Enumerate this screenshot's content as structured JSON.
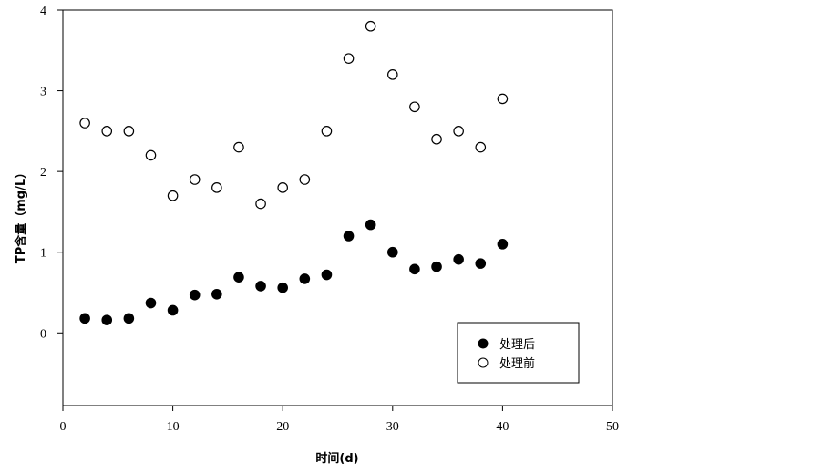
{
  "chart_data": {
    "type": "scatter",
    "xlabel": "时间(d)",
    "ylabel": "TP含量（mg/L）",
    "xlim": [
      0,
      50
    ],
    "ylim": [
      -0.9,
      4
    ],
    "xticks": [
      0,
      10,
      20,
      30,
      40,
      50
    ],
    "yticks": [
      0,
      1,
      2,
      3,
      4
    ],
    "grid": false,
    "legend_position": "bottom-right",
    "series": [
      {
        "name": "处理后",
        "marker": "filled-circle",
        "color": "#000000",
        "x": [
          2,
          4,
          6,
          8,
          10,
          12,
          14,
          16,
          18,
          20,
          22,
          24,
          26,
          28,
          30,
          32,
          34,
          36,
          38,
          40
        ],
        "y": [
          0.18,
          0.16,
          0.18,
          0.37,
          0.28,
          0.47,
          0.48,
          0.69,
          0.58,
          0.56,
          0.67,
          0.72,
          1.2,
          1.34,
          1.0,
          0.79,
          0.82,
          0.91,
          0.86,
          1.1
        ]
      },
      {
        "name": "处理前",
        "marker": "open-circle",
        "color": "#000000",
        "x": [
          2,
          4,
          6,
          8,
          10,
          12,
          14,
          16,
          18,
          20,
          22,
          24,
          26,
          28,
          30,
          32,
          34,
          36,
          38,
          40
        ],
        "y": [
          2.6,
          2.5,
          2.5,
          2.2,
          1.7,
          1.9,
          1.8,
          2.3,
          1.6,
          1.8,
          1.9,
          2.5,
          3.4,
          3.8,
          3.2,
          2.8,
          2.4,
          2.5,
          2.3,
          2.9
        ]
      }
    ]
  }
}
